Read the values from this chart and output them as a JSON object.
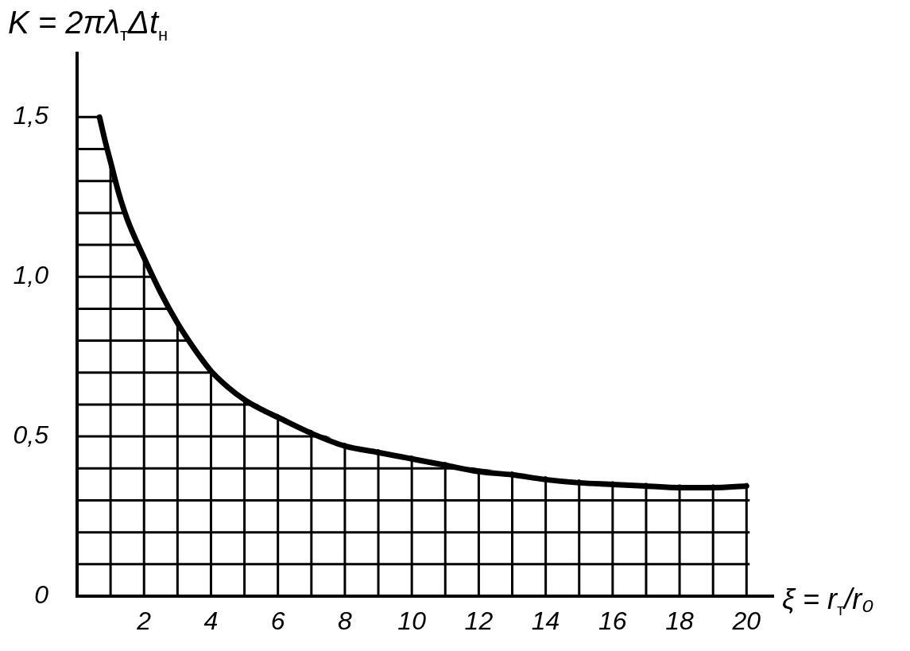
{
  "chart_data": {
    "type": "line",
    "xlabel": "ξ = r$_{т}$/r₀",
    "ylabel": "K = 2πλ$_{т}$Δt$_{н}$",
    "x": [
      0.67,
      0.85,
      1,
      1.25,
      1.5,
      2,
      2.5,
      3,
      3.5,
      4,
      4.5,
      5,
      5.5,
      6,
      7,
      8,
      9,
      10,
      11,
      12,
      13,
      14,
      15,
      16,
      17,
      18,
      19,
      20
    ],
    "values": [
      1.5,
      1.42,
      1.36,
      1.26,
      1.18,
      1.06,
      0.95,
      0.855,
      0.775,
      0.705,
      0.655,
      0.615,
      0.585,
      0.56,
      0.51,
      0.47,
      0.45,
      0.43,
      0.41,
      0.39,
      0.38,
      0.365,
      0.355,
      0.35,
      0.345,
      0.34,
      0.34,
      0.345
    ],
    "color": "#000000",
    "xlim": [
      0,
      20.8
    ],
    "ylim": [
      0,
      1.7
    ],
    "xticks": [
      {
        "value": 1,
        "label": null
      },
      2,
      {
        "value": 3,
        "label": null
      },
      4,
      {
        "value": 5,
        "label": null
      },
      6,
      {
        "value": 7,
        "label": null
      },
      8,
      {
        "value": 9,
        "label": null
      },
      10,
      {
        "value": 11,
        "label": null
      },
      12,
      {
        "value": 13,
        "label": null
      },
      14,
      {
        "value": 15,
        "label": null
      },
      16,
      {
        "value": 17,
        "label": null
      },
      18,
      {
        "value": 19,
        "label": null
      },
      20
    ],
    "yticks": [
      0,
      {
        "value": 0.1,
        "label": null
      },
      {
        "value": 0.2,
        "label": null
      },
      {
        "value": 0.3,
        "label": null
      },
      {
        "value": 0.4,
        "label": null
      },
      {
        "value": 0.5,
        "label": "0,5"
      },
      {
        "value": 0.6,
        "label": null
      },
      {
        "value": 0.7,
        "label": null
      },
      {
        "value": 0.8,
        "label": null
      },
      {
        "value": 0.9,
        "label": null
      },
      {
        "value": 1.0,
        "label": "1,0"
      },
      {
        "value": 1.1,
        "label": null
      },
      {
        "value": 1.2,
        "label": null
      },
      {
        "value": 1.3,
        "label": null
      },
      {
        "value": 1.4,
        "label": null
      },
      {
        "value": 1.5,
        "label": "1,5"
      }
    ],
    "grid": true
  }
}
